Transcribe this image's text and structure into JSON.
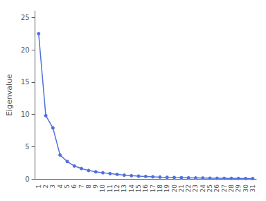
{
  "chart_data": {
    "type": "line",
    "ylabel": "Eigenvalue",
    "categories": [
      "1",
      "2",
      "3",
      "4",
      "5",
      "6",
      "7",
      "8",
      "9",
      "10",
      "11",
      "12",
      "13",
      "14",
      "15",
      "16",
      "17",
      "18",
      "19",
      "20",
      "21",
      "22",
      "23",
      "24",
      "25",
      "26",
      "27",
      "28",
      "29",
      "30",
      "31"
    ],
    "values": [
      22.5,
      9.8,
      7.9,
      3.7,
      2.7,
      2.0,
      1.6,
      1.3,
      1.1,
      0.95,
      0.82,
      0.7,
      0.58,
      0.5,
      0.43,
      0.38,
      0.33,
      0.28,
      0.24,
      0.21,
      0.19,
      0.17,
      0.15,
      0.13,
      0.11,
      0.1,
      0.09,
      0.08,
      0.07,
      0.06,
      0.05
    ],
    "ylim": [
      0,
      26
    ],
    "yticks": [
      0,
      5,
      10,
      15,
      20,
      25
    ],
    "grid": false,
    "marker": "circle"
  }
}
